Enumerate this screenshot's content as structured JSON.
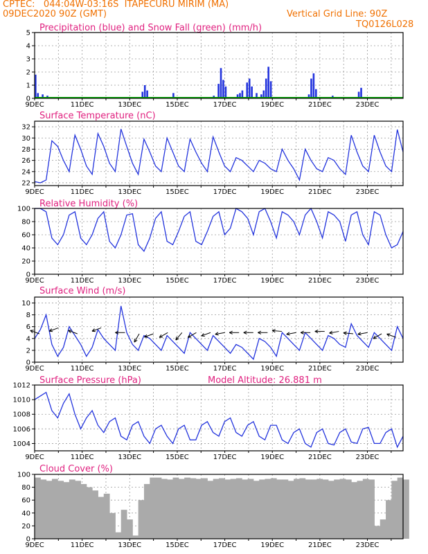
{
  "header": {
    "line1": "CPTEC:   044:04W-03:16S  ITAPECURU MIRIM (MA)",
    "line2": "09DEC2020 90Z (GMT)",
    "grid_note": "Vertical Grid Line: 90Z",
    "model_code": "TQ0126L028"
  },
  "colors": {
    "line": "#2233dd",
    "snow": "#00aa00",
    "cloud": "#aaaaaa",
    "title": "#e0207f",
    "header": "#f07000"
  },
  "chart_data": [
    {
      "id": "precip",
      "type": "bar",
      "title": "Precipitation (blue) and Snow Fall (green) (mm/h)",
      "ylim": [
        0,
        5
      ],
      "yticks": [
        0,
        1,
        2,
        3,
        4,
        5
      ],
      "xticks": [
        "9DEC",
        "11DEC",
        "13DEC",
        "15DEC",
        "17DEC",
        "19DEC",
        "21DEC",
        "23DEC"
      ],
      "xrange_days": [
        0,
        15.5
      ],
      "events": [
        [
          0.0,
          1.8
        ],
        [
          0.1,
          0.4
        ],
        [
          0.3,
          0.3
        ],
        [
          0.5,
          0.2
        ],
        [
          2.5,
          0.1
        ],
        [
          3.6,
          0.1
        ],
        [
          4.5,
          0.5
        ],
        [
          4.6,
          1.0
        ],
        [
          4.7,
          0.6
        ],
        [
          5.6,
          0.1
        ],
        [
          5.8,
          0.4
        ],
        [
          7.5,
          0.2
        ],
        [
          7.7,
          1.1
        ],
        [
          7.8,
          2.3
        ],
        [
          7.9,
          1.4
        ],
        [
          8.0,
          0.9
        ],
        [
          8.5,
          0.3
        ],
        [
          8.6,
          0.4
        ],
        [
          8.7,
          0.6
        ],
        [
          8.9,
          1.2
        ],
        [
          9.0,
          1.5
        ],
        [
          9.1,
          0.9
        ],
        [
          9.3,
          0.4
        ],
        [
          9.5,
          0.3
        ],
        [
          9.6,
          0.6
        ],
        [
          9.7,
          1.5
        ],
        [
          9.8,
          2.4
        ],
        [
          9.9,
          1.3
        ],
        [
          10.3,
          0.1
        ],
        [
          11.5,
          0.3
        ],
        [
          11.6,
          1.5
        ],
        [
          11.7,
          1.9
        ],
        [
          11.8,
          0.7
        ],
        [
          12.5,
          0.2
        ],
        [
          13.6,
          0.5
        ],
        [
          13.7,
          0.8
        ]
      ]
    },
    {
      "id": "temp",
      "type": "line",
      "title": "Surface Temperature (nC)",
      "ylim": [
        21.5,
        33
      ],
      "yticks": [
        22,
        24,
        26,
        28,
        30,
        32
      ],
      "xticks": [
        "9DEC",
        "11DEC",
        "13DEC",
        "15DEC",
        "17DEC",
        "19DEC",
        "21DEC",
        "23DEC"
      ],
      "xrange_days": [
        0,
        15.5
      ],
      "y": [
        22.2,
        22.0,
        22.5,
        29.5,
        28.5,
        26.0,
        24.0,
        30.5,
        28.0,
        25.0,
        23.5,
        30.8,
        28.5,
        25.5,
        24.0,
        31.6,
        28.5,
        25.5,
        23.5,
        29.8,
        27.5,
        25.0,
        24.0,
        30.0,
        27.5,
        25.0,
        24.0,
        29.8,
        27.5,
        25.5,
        24.0,
        30.2,
        27.5,
        25.0,
        24.0,
        26.5,
        26.0,
        25.0,
        24.0,
        26.0,
        25.5,
        24.5,
        24.0,
        28.0,
        26.0,
        24.5,
        22.5,
        28.0,
        26.0,
        24.5,
        24.0,
        26.5,
        26.0,
        24.5,
        23.5,
        30.5,
        27.5,
        25.0,
        24.0,
        30.5,
        27.5,
        25.0,
        24.0,
        31.5,
        27.5
      ]
    },
    {
      "id": "rh",
      "type": "line",
      "title": "Relative Humidity (%)",
      "ylim": [
        0,
        100
      ],
      "yticks": [
        0,
        20,
        40,
        60,
        80,
        100
      ],
      "xticks": [
        "9DEC",
        "11DEC",
        "13DEC",
        "15DEC",
        "17DEC",
        "19DEC",
        "21DEC",
        "23DEC"
      ],
      "xrange_days": [
        0,
        15.5
      ],
      "y": [
        100,
        100,
        95,
        55,
        45,
        60,
        90,
        95,
        55,
        45,
        60,
        85,
        95,
        50,
        40,
        60,
        90,
        92,
        45,
        35,
        55,
        85,
        95,
        50,
        45,
        65,
        88,
        95,
        50,
        45,
        65,
        88,
        95,
        60,
        70,
        100,
        95,
        85,
        60,
        95,
        100,
        80,
        55,
        95,
        90,
        80,
        60,
        90,
        100,
        80,
        55,
        95,
        90,
        80,
        50,
        90,
        95,
        60,
        45,
        95,
        90,
        60,
        40,
        45,
        65
      ]
    },
    {
      "id": "wind",
      "type": "line",
      "title": "Surface Wind (m/s)",
      "ylim": [
        0,
        11
      ],
      "yticks": [
        0,
        2,
        4,
        6,
        8,
        10
      ],
      "xticks": [
        "9DEC",
        "11DEC",
        "13DEC",
        "15DEC",
        "17DEC",
        "19DEC",
        "21DEC",
        "23DEC"
      ],
      "xrange_days": [
        0,
        15.5
      ],
      "y": [
        4.0,
        5.5,
        8.0,
        3.0,
        1.0,
        2.5,
        6.0,
        4.5,
        3.0,
        1.0,
        2.5,
        5.5,
        4.0,
        3.0,
        2.0,
        9.5,
        5.0,
        3.0,
        2.0,
        4.5,
        4.0,
        3.0,
        2.0,
        4.5,
        3.5,
        2.5,
        1.5,
        5.0,
        4.0,
        3.0,
        2.0,
        4.5,
        3.5,
        2.5,
        1.5,
        3.0,
        2.5,
        1.5,
        0.5,
        4.0,
        3.5,
        2.5,
        1.0,
        5.0,
        4.0,
        3.0,
        2.0,
        5.0,
        4.0,
        3.0,
        2.0,
        4.5,
        4.0,
        3.0,
        2.5,
        6.5,
        4.5,
        3.5,
        2.5,
        5.0,
        4.0,
        3.0,
        2.0,
        6.0,
        4.0
      ],
      "arrows": [
        [
          0.2,
          4.8,
          160
        ],
        [
          1.0,
          5.8,
          200
        ],
        [
          1.8,
          4.8,
          160
        ],
        [
          2.8,
          5.8,
          200
        ],
        [
          3.8,
          5.0,
          180
        ],
        [
          4.4,
          4.8,
          240
        ],
        [
          5.0,
          4.8,
          200
        ],
        [
          5.6,
          5.0,
          210
        ],
        [
          6.2,
          5.0,
          230
        ],
        [
          6.8,
          5.0,
          210
        ],
        [
          7.4,
          5.0,
          200
        ],
        [
          8.0,
          5.0,
          190
        ],
        [
          8.6,
          5.0,
          180
        ],
        [
          9.2,
          5.0,
          180
        ],
        [
          9.8,
          5.0,
          180
        ],
        [
          10.4,
          5.2,
          175
        ],
        [
          11.0,
          5.0,
          190
        ],
        [
          11.6,
          5.0,
          180
        ],
        [
          12.2,
          5.2,
          180
        ],
        [
          12.8,
          5.2,
          190
        ],
        [
          13.4,
          4.8,
          175
        ],
        [
          14.0,
          5.0,
          190
        ],
        [
          14.6,
          4.8,
          210
        ],
        [
          15.2,
          4.2,
          160
        ]
      ]
    },
    {
      "id": "pres",
      "type": "line",
      "title": "Surface Pressure (hPa)",
      "subtitle": "Model Altitude: 26.881  m",
      "ylim": [
        1003,
        1012
      ],
      "yticks": [
        1004,
        1006,
        1008,
        1010,
        1012
      ],
      "xticks": [
        "9DEC",
        "11DEC",
        "13DEC",
        "15DEC",
        "17DEC",
        "19DEC",
        "21DEC",
        "23DEC"
      ],
      "xrange_days": [
        0,
        15.5
      ],
      "y": [
        1010.0,
        1010.5,
        1011.0,
        1008.5,
        1007.5,
        1009.5,
        1010.8,
        1008.0,
        1006.0,
        1007.5,
        1008.5,
        1006.5,
        1005.5,
        1007.0,
        1007.5,
        1005.0,
        1004.5,
        1006.5,
        1007.0,
        1005.0,
        1004.0,
        1006.0,
        1006.5,
        1005.0,
        1004.0,
        1006.0,
        1006.5,
        1004.5,
        1004.5,
        1006.5,
        1007.0,
        1005.5,
        1005.0,
        1007.0,
        1007.5,
        1005.5,
        1005.0,
        1006.5,
        1007.0,
        1005.0,
        1004.5,
        1006.5,
        1006.5,
        1004.5,
        1004.0,
        1005.5,
        1006.0,
        1004.0,
        1003.5,
        1005.5,
        1006.0,
        1004.0,
        1003.8,
        1005.5,
        1006.0,
        1004.2,
        1004.0,
        1006.0,
        1006.2,
        1004.0,
        1004.0,
        1005.5,
        1006.0,
        1003.5,
        1005.0
      ]
    },
    {
      "id": "cloud",
      "type": "area",
      "title": "Cloud Cover (%)",
      "ylim": [
        0,
        100
      ],
      "yticks": [
        0,
        20,
        40,
        60,
        80,
        100
      ],
      "xticks": [
        "9DEC",
        "11DEC",
        "13DEC",
        "15DEC",
        "17DEC",
        "19DEC",
        "21DEC",
        "23DEC"
      ],
      "xrange_days": [
        0,
        15.5
      ],
      "y": [
        95,
        92,
        90,
        93,
        90,
        88,
        92,
        90,
        85,
        80,
        75,
        65,
        70,
        40,
        10,
        45,
        30,
        5,
        60,
        85,
        95,
        95,
        93,
        92,
        95,
        93,
        95,
        94,
        93,
        94,
        90,
        93,
        94,
        92,
        93,
        94,
        92,
        93,
        90,
        92,
        93,
        94,
        92,
        92,
        90,
        93,
        94,
        92,
        92,
        93,
        92,
        90,
        92,
        93,
        92,
        88,
        90,
        93,
        92,
        20,
        30,
        60,
        90,
        95,
        92
      ]
    }
  ]
}
